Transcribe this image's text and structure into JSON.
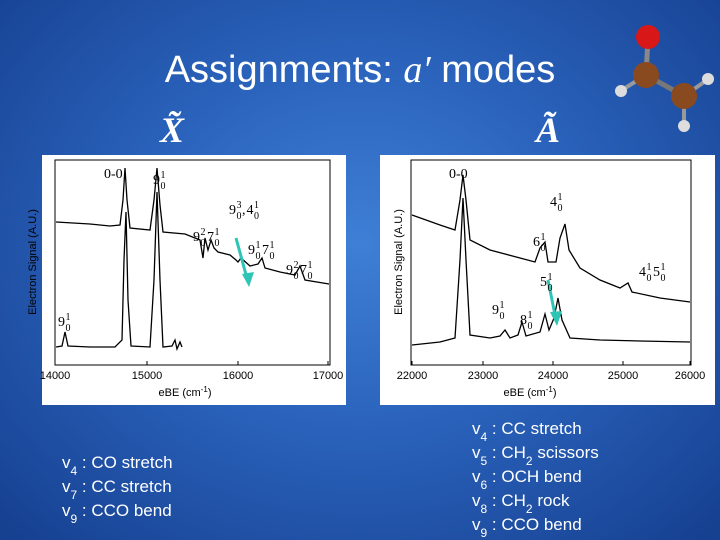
{
  "title": {
    "text": "Assignments: ",
    "symbol": "a′",
    "rest": " modes"
  },
  "states": [
    "X̃",
    "Ã"
  ],
  "panels": [
    {
      "ylabel": "Electron Signal (A.U.)",
      "xlabel": {
        "text": "eBE (cm",
        "sup": "-1",
        "end": ")"
      },
      "xticks": [
        "14000",
        "15000",
        "16000",
        "17000"
      ],
      "peaks": [
        {
          "text": "0-0"
        },
        {
          "terms": [
            {
              "n": "9",
              "up": "1",
              "lo": "0"
            }
          ]
        },
        {
          "terms": [
            {
              "n": "9",
              "up": "2",
              "lo": "0"
            },
            {
              "n": "7",
              "up": "1",
              "lo": "0"
            }
          ]
        },
        {
          "terms": [
            {
              "n": "9",
              "up": "3",
              "lo": "0"
            },
            {
              "n": "4",
              "up": "1",
              "lo": "0"
            }
          ],
          "sep": ","
        },
        {
          "terms": [
            {
              "n": "9",
              "up": "1",
              "lo": "0"
            },
            {
              "n": "7",
              "up": "1",
              "lo": "0"
            }
          ]
        },
        {
          "terms": [
            {
              "n": "9",
              "up": "2",
              "lo": "0"
            },
            {
              "n": "7",
              "up": "1",
              "lo": "0"
            }
          ]
        },
        {
          "terms": [
            {
              "n": "9",
              "up": "1",
              "lo": "0"
            }
          ]
        }
      ]
    },
    {
      "ylabel": "Electron Signal (A.U.)",
      "xlabel": {
        "text": "eBE (cm",
        "sup": "-1",
        "end": ")"
      },
      "xticks": [
        "22000",
        "23000",
        "24000",
        "25000",
        "26000"
      ],
      "peaks": [
        {
          "text": "0-0"
        },
        {
          "terms": [
            {
              "n": "4",
              "up": "1",
              "lo": "0"
            }
          ]
        },
        {
          "terms": [
            {
              "n": "6",
              "up": "1",
              "lo": "0"
            }
          ]
        },
        {
          "terms": [
            {
              "n": "5",
              "up": "1",
              "lo": "0"
            }
          ]
        },
        {
          "terms": [
            {
              "n": "4",
              "up": "1",
              "lo": "0"
            },
            {
              "n": "5",
              "up": "1",
              "lo": "0"
            }
          ]
        },
        {
          "terms": [
            {
              "n": "9",
              "up": "1",
              "lo": "0"
            }
          ]
        },
        {
          "terms": [
            {
              "n": "8",
              "up": "1",
              "lo": "0"
            }
          ]
        }
      ]
    }
  ],
  "modes": [
    [
      [
        {
          "text": "v"
        },
        {
          "text": "4",
          "sub": true
        },
        {
          "text": " : CO stretch"
        }
      ],
      [
        {
          "text": "v"
        },
        {
          "text": "7",
          "sub": true
        },
        {
          "text": " : CC stretch"
        }
      ],
      [
        {
          "text": "v"
        },
        {
          "text": "9",
          "sub": true
        },
        {
          "text": " : CCO bend"
        }
      ]
    ],
    [
      [
        {
          "text": "v"
        },
        {
          "text": "4",
          "sub": true
        },
        {
          "text": " : CC stretch"
        }
      ],
      [
        {
          "text": "v"
        },
        {
          "text": "5",
          "sub": true
        },
        {
          "text": " : CH"
        },
        {
          "text": "2",
          "sub": true
        },
        {
          "text": " scissors"
        }
      ],
      [
        {
          "text": "v"
        },
        {
          "text": "6",
          "sub": true
        },
        {
          "text": " : OCH bend"
        }
      ],
      [
        {
          "text": "v"
        },
        {
          "text": "8",
          "sub": true
        },
        {
          "text": " : CH"
        },
        {
          "text": "2",
          "sub": true
        },
        {
          "text": " rock"
        }
      ],
      [
        {
          "text": "v"
        },
        {
          "text": "9",
          "sub": true
        },
        {
          "text": " : CCO bend"
        }
      ]
    ]
  ]
}
